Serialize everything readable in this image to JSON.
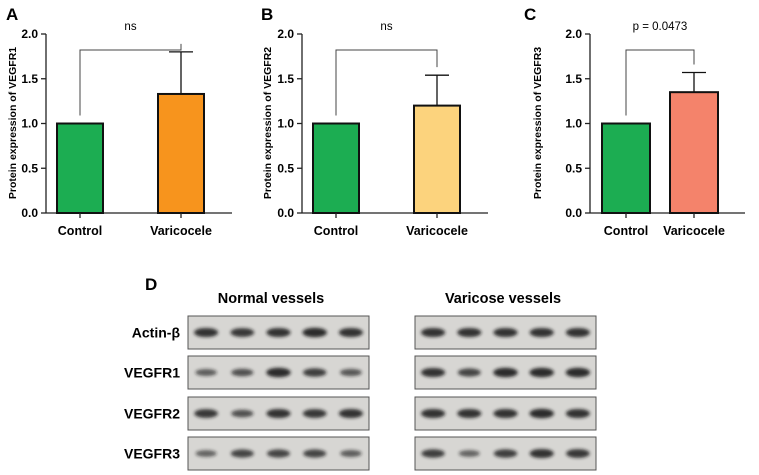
{
  "chart_data": [
    {
      "type": "bar",
      "panel": "A",
      "title": "",
      "xlabel": "",
      "ylabel": "Protein expression of VEGFR1",
      "categories": [
        "Control",
        "Varicocele"
      ],
      "values": [
        1.0,
        1.33
      ],
      "errors": [
        0,
        0.47
      ],
      "colors": [
        "#1cad52",
        "#f7941d"
      ],
      "ylim": [
        0,
        2.0
      ],
      "yticks": [
        "0.0",
        "0.5",
        "1.0",
        "1.5",
        "2.0"
      ],
      "significance": "ns"
    },
    {
      "type": "bar",
      "panel": "B",
      "title": "",
      "xlabel": "",
      "ylabel": "Protein expression of VEGFR2",
      "categories": [
        "Control",
        "Varicocele"
      ],
      "values": [
        1.0,
        1.2
      ],
      "errors": [
        0,
        0.34
      ],
      "colors": [
        "#1cad52",
        "#fcd37d"
      ],
      "ylim": [
        0,
        2.0
      ],
      "yticks": [
        "0.0",
        "0.5",
        "1.0",
        "1.5",
        "2.0"
      ],
      "significance": "ns"
    },
    {
      "type": "bar",
      "panel": "C",
      "title": "",
      "xlabel": "",
      "ylabel": "Protein expression of VEGFR3",
      "categories": [
        "Control",
        "Varicocele"
      ],
      "values": [
        1.0,
        1.35
      ],
      "errors": [
        0,
        0.22
      ],
      "colors": [
        "#1cad52",
        "#f4836b"
      ],
      "ylim": [
        0,
        2.0
      ],
      "yticks": [
        "0.0",
        "0.5",
        "1.0",
        "1.5",
        "2.0"
      ],
      "significance": "p = 0.0473"
    }
  ],
  "blot": {
    "panel": "D",
    "groups": [
      "Normal vessels",
      "Varicose vessels"
    ],
    "rows": [
      {
        "label": "Actin-β",
        "normal": [
          0.85,
          0.8,
          0.85,
          0.9,
          0.85
        ],
        "varicose": [
          0.85,
          0.85,
          0.85,
          0.85,
          0.85
        ]
      },
      {
        "label": "VEGFR1",
        "normal": [
          0.5,
          0.6,
          0.9,
          0.75,
          0.55
        ],
        "varicose": [
          0.85,
          0.7,
          0.9,
          0.9,
          0.9
        ]
      },
      {
        "label": "VEGFR2",
        "normal": [
          0.8,
          0.6,
          0.85,
          0.8,
          0.85
        ],
        "varicose": [
          0.85,
          0.85,
          0.85,
          0.9,
          0.85
        ]
      },
      {
        "label": "VEGFR3",
        "normal": [
          0.45,
          0.7,
          0.7,
          0.7,
          0.5
        ],
        "varicose": [
          0.75,
          0.45,
          0.75,
          0.85,
          0.8
        ]
      }
    ]
  }
}
